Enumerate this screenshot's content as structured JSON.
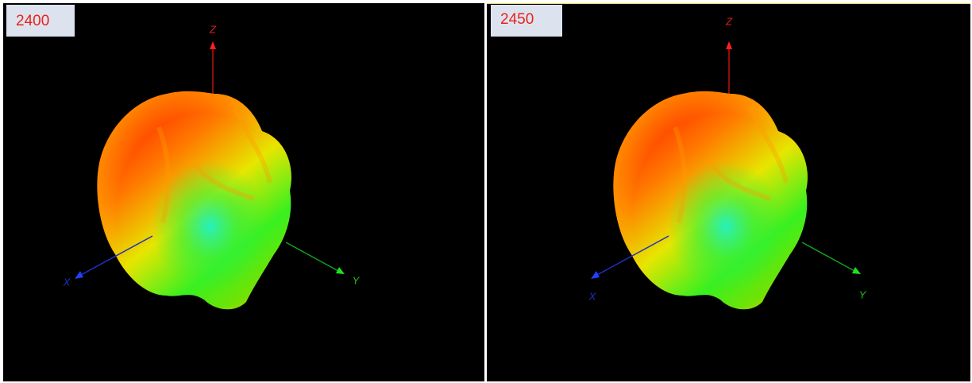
{
  "panels": [
    {
      "label": "2400",
      "axes": {
        "x": "X",
        "y": "Y",
        "z": "Z"
      }
    },
    {
      "label": "2450",
      "axes": {
        "x": "X",
        "y": "Y",
        "z": "Z"
      }
    }
  ]
}
